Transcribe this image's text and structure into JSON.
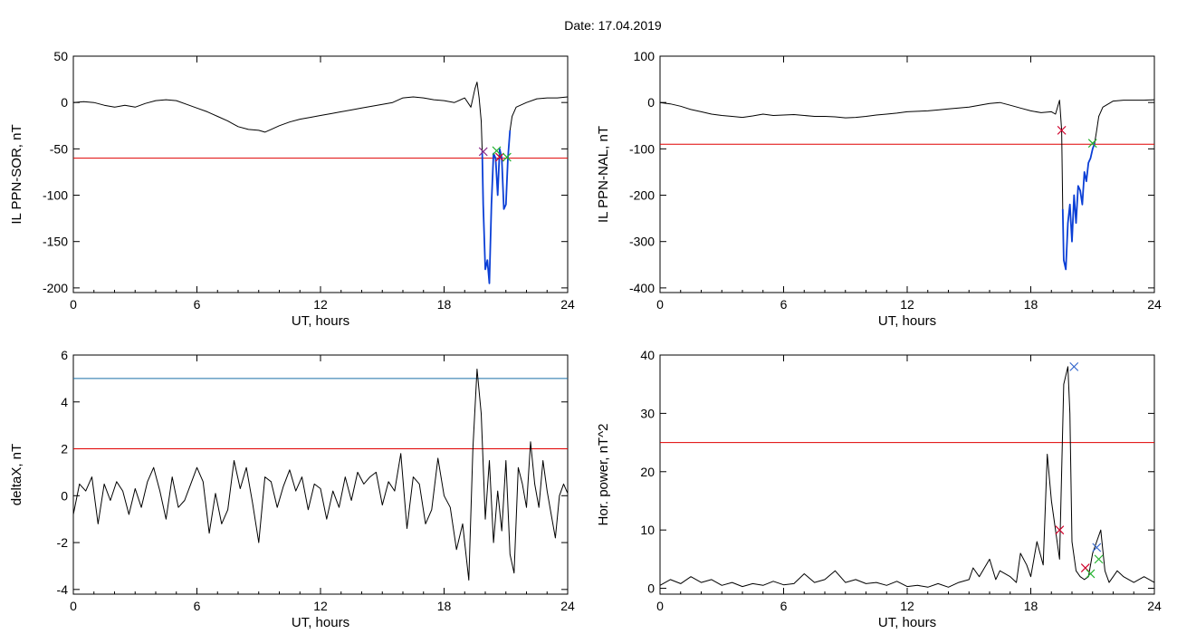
{
  "figure": {
    "title": "Date:  17.04.2019"
  },
  "colors": {
    "trace": "#000000",
    "blue_trace": "#0b3fd6",
    "threshold_red": "#e00000",
    "threshold_blue": "#1a6fa8",
    "marker_red": "#d0002a",
    "marker_green": "#22b22e",
    "marker_blue": "#3366cc",
    "marker_purple": "#8a2b8a"
  },
  "chart_data": [
    {
      "id": "sor",
      "type": "line",
      "xlabel": "UT, hours",
      "ylabel": "IL PPN-SOR, nT",
      "xlim": [
        0,
        24
      ],
      "ylim": [
        -205,
        50
      ],
      "xticks": [
        0,
        6,
        12,
        18,
        24
      ],
      "yticks": [
        50,
        0,
        -50,
        -100,
        -150,
        -200
      ],
      "thresholds": [
        {
          "value": -60,
          "color": "red"
        }
      ],
      "x": [
        0,
        0.5,
        1,
        1.5,
        2,
        2.5,
        3,
        3.5,
        4,
        4.5,
        5,
        5.5,
        6,
        6.5,
        7,
        7.5,
        8,
        8.5,
        9,
        9.3,
        9.6,
        10,
        10.5,
        11,
        11.5,
        12,
        12.5,
        13,
        13.5,
        14,
        14.5,
        15,
        15.5,
        16,
        16.5,
        17,
        17.5,
        18,
        18.5,
        19,
        19.3,
        19.5,
        19.6,
        19.7,
        19.8,
        19.85,
        19.9,
        20,
        20.1,
        20.2,
        20.3,
        20.4,
        20.5,
        20.6,
        20.7,
        20.8,
        20.9,
        21,
        21.1,
        21.2,
        21.3,
        21.5,
        22,
        22.5,
        23,
        23.5,
        24
      ],
      "y": [
        0,
        1,
        0,
        -3,
        -5,
        -3,
        -5,
        -1,
        2,
        3,
        2,
        -2,
        -6,
        -10,
        -15,
        -20,
        -26,
        -29,
        -30,
        -32,
        -29,
        -25,
        -21,
        -18,
        -16,
        -14,
        -12,
        -10,
        -8,
        -6,
        -4,
        -2,
        0,
        5,
        6,
        5,
        3,
        2,
        0,
        5,
        -5,
        15,
        22,
        5,
        -20,
        -53,
        -110,
        -180,
        -170,
        -195,
        -110,
        -55,
        -60,
        -100,
        -50,
        -60,
        -115,
        -110,
        -60,
        -30,
        -15,
        -5,
        0,
        4,
        5,
        5,
        6
      ],
      "series_highlight": {
        "x_from": 19.85,
        "x_to": 21.2,
        "color": "blue"
      },
      "markers": [
        {
          "x": 19.9,
          "y": -53,
          "color": "purple"
        },
        {
          "x": 20.55,
          "y": -52,
          "color": "green"
        },
        {
          "x": 20.7,
          "y": -59,
          "color": "red"
        },
        {
          "x": 21.05,
          "y": -59,
          "color": "green"
        }
      ]
    },
    {
      "id": "nal",
      "type": "line",
      "xlabel": "UT, hours",
      "ylabel": "IL PPN-NAL, nT",
      "xlim": [
        0,
        24
      ],
      "ylim": [
        -410,
        100
      ],
      "xticks": [
        0,
        6,
        12,
        18,
        24
      ],
      "yticks": [
        100,
        0,
        -100,
        -200,
        -300,
        -400
      ],
      "thresholds": [
        {
          "value": -90,
          "color": "red"
        }
      ],
      "x": [
        0,
        0.5,
        1,
        1.5,
        2,
        2.5,
        3,
        3.5,
        4,
        4.5,
        5,
        5.5,
        6,
        6.5,
        7,
        7.5,
        8,
        8.5,
        9,
        9.5,
        10,
        10.5,
        11,
        11.5,
        12,
        12.5,
        13,
        13.5,
        14,
        14.5,
        15,
        15.5,
        16,
        16.5,
        17,
        17.5,
        18,
        18.5,
        19,
        19.2,
        19.4,
        19.5,
        19.55,
        19.6,
        19.7,
        19.8,
        19.9,
        20,
        20.1,
        20.2,
        20.3,
        20.4,
        20.5,
        20.6,
        20.7,
        20.8,
        20.9,
        21,
        21.1,
        21.2,
        21.3,
        21.5,
        22,
        22.5,
        23,
        23.5,
        24
      ],
      "y": [
        0,
        -3,
        -8,
        -15,
        -20,
        -25,
        -28,
        -30,
        -32,
        -29,
        -25,
        -28,
        -27,
        -26,
        -28,
        -30,
        -30,
        -31,
        -33,
        -32,
        -30,
        -27,
        -25,
        -23,
        -20,
        -19,
        -18,
        -16,
        -14,
        -12,
        -10,
        -6,
        -2,
        0,
        -6,
        -12,
        -18,
        -22,
        -20,
        -25,
        5,
        -60,
        -230,
        -340,
        -360,
        -260,
        -220,
        -300,
        -200,
        -260,
        -180,
        -190,
        -220,
        -150,
        -170,
        -130,
        -120,
        -100,
        -88,
        -60,
        -30,
        -10,
        3,
        5,
        5,
        5,
        6
      ],
      "series_highlight": {
        "x_from": 19.55,
        "x_to": 21.1,
        "color": "blue"
      },
      "markers": [
        {
          "x": 19.5,
          "y": -60,
          "color": "red"
        },
        {
          "x": 21.0,
          "y": -88,
          "color": "green"
        }
      ]
    },
    {
      "id": "deltax",
      "type": "line",
      "xlabel": "UT, hours",
      "ylabel": "deltaX, nT",
      "xlim": [
        0,
        24
      ],
      "ylim": [
        -4.2,
        6
      ],
      "xticks": [
        0,
        6,
        12,
        18,
        24
      ],
      "yticks": [
        6,
        4,
        2,
        0,
        -2,
        -4
      ],
      "thresholds": [
        {
          "value": 5,
          "color": "blue"
        },
        {
          "value": 2,
          "color": "red"
        }
      ],
      "x": [
        0,
        0.3,
        0.6,
        0.9,
        1.2,
        1.5,
        1.8,
        2.1,
        2.4,
        2.7,
        3,
        3.3,
        3.6,
        3.9,
        4.2,
        4.5,
        4.8,
        5.1,
        5.4,
        5.7,
        6,
        6.3,
        6.6,
        6.9,
        7.2,
        7.5,
        7.8,
        8.1,
        8.4,
        8.7,
        9,
        9.3,
        9.6,
        9.9,
        10.2,
        10.5,
        10.8,
        11.1,
        11.4,
        11.7,
        12,
        12.3,
        12.6,
        12.9,
        13.2,
        13.5,
        13.8,
        14.1,
        14.4,
        14.7,
        15,
        15.3,
        15.6,
        15.9,
        16.2,
        16.5,
        16.8,
        17.1,
        17.4,
        17.7,
        18,
        18.3,
        18.6,
        18.9,
        19.2,
        19.4,
        19.6,
        19.8,
        20,
        20.2,
        20.4,
        20.6,
        20.8,
        21,
        21.2,
        21.4,
        21.6,
        21.8,
        22,
        22.2,
        22.4,
        22.6,
        22.8,
        23,
        23.2,
        23.4,
        23.6,
        23.8,
        24
      ],
      "y": [
        -0.8,
        0.5,
        0.2,
        0.8,
        -1.2,
        0.5,
        -0.2,
        0.6,
        0.2,
        -0.8,
        0.3,
        -0.5,
        0.6,
        1.2,
        0.2,
        -1,
        0.8,
        -0.5,
        -0.2,
        0.5,
        1.2,
        0.6,
        -1.6,
        0.1,
        -1.2,
        -0.6,
        1.5,
        0.3,
        1.2,
        -0.3,
        -2,
        0.8,
        0.6,
        -0.5,
        0.4,
        1.1,
        0.2,
        0.8,
        -0.6,
        0.5,
        0.3,
        -1,
        0.2,
        -0.5,
        0.8,
        -0.2,
        1,
        0.5,
        0.8,
        1,
        -0.4,
        0.6,
        0.2,
        1.8,
        -1.4,
        0.8,
        0.5,
        -1.2,
        -0.6,
        1.6,
        0,
        -0.5,
        -2.3,
        -1.2,
        -3.6,
        2,
        5.4,
        3.5,
        -1,
        1.5,
        -2,
        0.2,
        -1.5,
        1.5,
        -2.5,
        -3.3,
        1.2,
        0.5,
        -0.5,
        2.3,
        0.5,
        -0.5,
        1.5,
        0.2,
        -0.8,
        -1.8,
        0,
        0.5,
        0.1
      ],
      "markers": []
    },
    {
      "id": "power",
      "type": "line",
      "xlabel": "UT, hours",
      "ylabel": "Hor. power, nT^2",
      "xlim": [
        0,
        24
      ],
      "ylim": [
        -1,
        40
      ],
      "xticks": [
        0,
        6,
        12,
        18,
        24
      ],
      "yticks": [
        40,
        30,
        20,
        10,
        0
      ],
      "thresholds": [
        {
          "value": 25,
          "color": "red"
        }
      ],
      "x": [
        0,
        0.5,
        1,
        1.5,
        2,
        2.5,
        3,
        3.5,
        4,
        4.5,
        5,
        5.5,
        6,
        6.5,
        7,
        7.5,
        8,
        8.5,
        9,
        9.5,
        10,
        10.5,
        11,
        11.5,
        12,
        12.5,
        13,
        13.5,
        14,
        14.5,
        15,
        15.2,
        15.5,
        16,
        16.3,
        16.5,
        17,
        17.3,
        17.5,
        17.8,
        18,
        18.3,
        18.6,
        18.8,
        19,
        19.2,
        19.4,
        19.5,
        19.6,
        19.8,
        19.9,
        20,
        20.2,
        20.4,
        20.6,
        20.8,
        21,
        21.2,
        21.4,
        21.6,
        21.8,
        22,
        22.2,
        22.5,
        23,
        23.5,
        24
      ],
      "y": [
        0.5,
        1.5,
        0.8,
        2,
        1,
        1.5,
        0.5,
        1,
        0.3,
        0.8,
        0.5,
        1.2,
        0.6,
        0.8,
        2.5,
        1,
        1.5,
        3,
        1,
        1.5,
        0.8,
        1,
        0.5,
        1.2,
        0.3,
        0.5,
        0.2,
        0.8,
        0.2,
        1,
        1.5,
        3.5,
        2,
        5,
        1.5,
        3,
        2,
        1,
        6,
        4,
        2,
        8,
        4,
        23,
        15,
        10,
        5,
        20,
        35,
        38,
        30,
        8,
        3,
        2,
        1.5,
        2,
        6,
        8,
        10,
        3,
        1,
        2,
        3,
        2,
        1,
        2,
        1
      ],
      "markers": [
        {
          "x": 19.4,
          "y": 10,
          "color": "red"
        },
        {
          "x": 20.1,
          "y": 38,
          "color": "blue"
        },
        {
          "x": 20.65,
          "y": 3.5,
          "color": "red"
        },
        {
          "x": 20.9,
          "y": 2.5,
          "color": "green"
        },
        {
          "x": 21.2,
          "y": 7,
          "color": "blue"
        },
        {
          "x": 21.3,
          "y": 5,
          "color": "green"
        }
      ]
    }
  ]
}
